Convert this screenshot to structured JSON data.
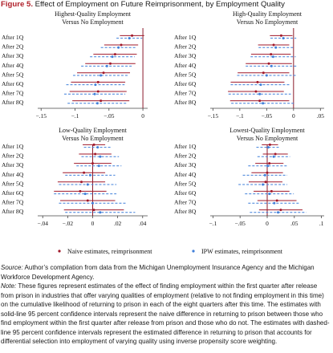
{
  "figure": {
    "number": "Figure 5.",
    "title": "Effect of Employment on Future Reimprisonment, by Employment Quality"
  },
  "legend": {
    "naive": "Naive estimates, reimprisonment",
    "ipw": "IPW estimates, reimprisonment",
    "naive_color": "#a0182a",
    "ipw_color": "#3f7fd9"
  },
  "colors": {
    "naive": "#a0182a",
    "ipw": "#3f7fd9",
    "zero_line": "#8b1a2a"
  },
  "chart_data": [
    {
      "type": "scatter",
      "title_line1": "Highest-Quality Employment",
      "title_line2": "Versus No Employment",
      "categories": [
        "After 1Q",
        "After 2Q",
        "After 3Q",
        "After 4Q",
        "After 5Q",
        "After 6Q",
        "After 7Q",
        "After 8Q"
      ],
      "xlim": [
        -0.155,
        0.007
      ],
      "xticks": [
        -0.15,
        -0.1,
        -0.05,
        0
      ],
      "xtick_labels": [
        "−.15",
        "−.1",
        "−.05",
        "0"
      ],
      "series": [
        {
          "name": "Naive estimates, reimprisonment",
          "values": [
            -0.016,
            -0.032,
            -0.041,
            -0.048,
            -0.058,
            -0.066,
            -0.066,
            -0.062
          ],
          "ci": [
            [
              -0.034,
              0.002
            ],
            [
              -0.057,
              -0.007
            ],
            [
              -0.073,
              -0.009
            ],
            [
              -0.085,
              -0.011
            ],
            [
              -0.097,
              -0.019
            ],
            [
              -0.106,
              -0.026
            ],
            [
              -0.108,
              -0.024
            ],
            [
              -0.104,
              -0.02
            ]
          ]
        },
        {
          "name": "IPW estimates, reimprisonment",
          "values": [
            -0.02,
            -0.036,
            -0.045,
            -0.053,
            -0.062,
            -0.07,
            -0.071,
            -0.067
          ],
          "ci": [
            [
              -0.039,
              -0.001
            ],
            [
              -0.062,
              -0.01
            ],
            [
              -0.078,
              -0.012
            ],
            [
              -0.091,
              -0.015
            ],
            [
              -0.103,
              -0.021
            ],
            [
              -0.113,
              -0.027
            ],
            [
              -0.116,
              -0.026
            ],
            [
              -0.111,
              -0.023
            ]
          ]
        }
      ]
    },
    {
      "type": "scatter",
      "title_line1": "High-Quality Employment",
      "title_line2": "Versus No Employment",
      "categories": [
        "After 1Q",
        "After 2Q",
        "After 3Q",
        "After 4Q",
        "After 5Q",
        "After 6Q",
        "After 7Q",
        "After 8Q"
      ],
      "xlim": [
        -0.155,
        0.057
      ],
      "xticks": [
        -0.15,
        -0.1,
        -0.05,
        0,
        0.05
      ],
      "xtick_labels": [
        "−.15",
        "−.1",
        "−.05",
        "0",
        ".05"
      ],
      "series": [
        {
          "name": "Naive estimates, reimprisonment",
          "values": [
            -0.023,
            -0.037,
            -0.042,
            -0.046,
            -0.056,
            -0.067,
            -0.07,
            -0.063
          ],
          "ci": [
            [
              -0.044,
              -0.002
            ],
            [
              -0.066,
              -0.008
            ],
            [
              -0.079,
              -0.005
            ],
            [
              -0.089,
              -0.003
            ],
            [
              -0.104,
              -0.008
            ],
            [
              -0.117,
              -0.017
            ],
            [
              -0.122,
              -0.018
            ],
            [
              -0.118,
              -0.008
            ]
          ]
        },
        {
          "name": "IPW estimates, reimprisonment",
          "values": [
            -0.019,
            -0.033,
            -0.038,
            -0.041,
            -0.05,
            -0.061,
            -0.063,
            -0.057
          ],
          "ci": [
            [
              -0.043,
              0.005
            ],
            [
              -0.065,
              -0.001
            ],
            [
              -0.08,
              0.004
            ],
            [
              -0.089,
              0.007
            ],
            [
              -0.105,
              0.005
            ],
            [
              -0.117,
              -0.005
            ],
            [
              -0.121,
              -0.005
            ],
            [
              -0.116,
              0.002
            ]
          ]
        }
      ]
    },
    {
      "type": "scatter",
      "title_line1": "Low-Quality Employment",
      "title_line2": "Versus No Employment",
      "categories": [
        "After 1Q",
        "After 2Q",
        "After 3Q",
        "After 4Q",
        "After 5Q",
        "After 6Q",
        "After 7Q",
        "After 8Q"
      ],
      "xlim": [
        -0.044,
        0.044
      ],
      "xticks": [
        -0.04,
        -0.02,
        0,
        0.02,
        0.04
      ],
      "xtick_labels": [
        "−.04",
        "−.02",
        "0",
        ".02",
        ".04"
      ],
      "series": [
        {
          "name": "Naive estimates, reimprisonment",
          "values": [
            0.001,
            0.002,
            0.0,
            -0.007,
            -0.009,
            -0.01,
            -0.004,
            0.001
          ],
          "ci": [
            [
              -0.008,
              0.01
            ],
            [
              -0.011,
              0.015
            ],
            [
              -0.015,
              0.015
            ],
            [
              -0.024,
              0.01
            ],
            [
              -0.028,
              0.01
            ],
            [
              -0.031,
              0.011
            ],
            [
              -0.026,
              0.018
            ],
            [
              -0.023,
              0.025
            ]
          ]
        },
        {
          "name": "IPW estimates, reimprisonment",
          "values": [
            0.004,
            0.006,
            0.005,
            -0.002,
            -0.004,
            -0.006,
            0.0,
            0.006
          ],
          "ci": [
            [
              -0.007,
              0.015
            ],
            [
              -0.009,
              0.021
            ],
            [
              -0.013,
              0.023
            ],
            [
              -0.022,
              0.018
            ],
            [
              -0.027,
              0.019
            ],
            [
              -0.031,
              0.019
            ],
            [
              -0.027,
              0.027
            ],
            [
              -0.022,
              0.034
            ]
          ]
        }
      ]
    },
    {
      "type": "scatter",
      "title_line1": "Lowest-Quality Employment",
      "title_line2": "Versus No Employment",
      "categories": [
        "After 1Q",
        "After 2Q",
        "After 3Q",
        "After 4Q",
        "After 5Q",
        "After 6Q",
        "After 7Q",
        "After 8Q"
      ],
      "xlim": [
        -0.105,
        0.105
      ],
      "xticks": [
        -0.1,
        -0.05,
        0,
        0.05,
        0.1
      ],
      "xtick_labels": [
        "−.1",
        "−.05",
        "0",
        ".05",
        ".1"
      ],
      "series": [
        {
          "name": "Naive estimates, reimprisonment",
          "values": [
            0.005,
            0.015,
            0.004,
            0.0,
            -0.003,
            0.008,
            0.018,
            0.025
          ],
          "ci": [
            [
              -0.01,
              0.02
            ],
            [
              -0.008,
              0.038
            ],
            [
              -0.022,
              0.03
            ],
            [
              -0.029,
              0.029
            ],
            [
              -0.034,
              0.028
            ],
            [
              -0.025,
              0.041
            ],
            [
              -0.018,
              0.054
            ],
            [
              -0.015,
              0.065
            ]
          ]
        },
        {
          "name": "IPW estimates, reimprisonment",
          "values": [
            0.002,
            0.012,
            0.001,
            -0.004,
            -0.008,
            0.004,
            0.013,
            0.02
          ],
          "ci": [
            [
              -0.02,
              0.024
            ],
            [
              -0.018,
              0.042
            ],
            [
              -0.035,
              0.037
            ],
            [
              -0.045,
              0.037
            ],
            [
              -0.053,
              0.037
            ],
            [
              -0.041,
              0.049
            ],
            [
              -0.035,
              0.061
            ],
            [
              -0.032,
              0.072
            ]
          ]
        }
      ]
    }
  ],
  "source": {
    "label": "Source:",
    "text": "Author’s compilation from data from the Michigan Unemployment Insurance Agency and the Michigan Workforce Development Agency."
  },
  "note": {
    "label": "Note:",
    "text": "These figures represent estimates of the effect of finding employment within the first quarter after release from prison in industries that offer varying qualities of employment (relative to not finding employment in this time) on the cumulative likelihood of returning to prison in each of the eight quarters after this time. The estimates with solid-line 95 percent confidence intervals represent the naive difference in returning to prison between those who find employment within the first quarter after release from prison and those who do not. The estimates with dashed-line 95 percent confidence intervals represent the estimated difference in returning to prison that accounts for differential selection into employment of varying quality using inverse propensity score weighting."
  }
}
